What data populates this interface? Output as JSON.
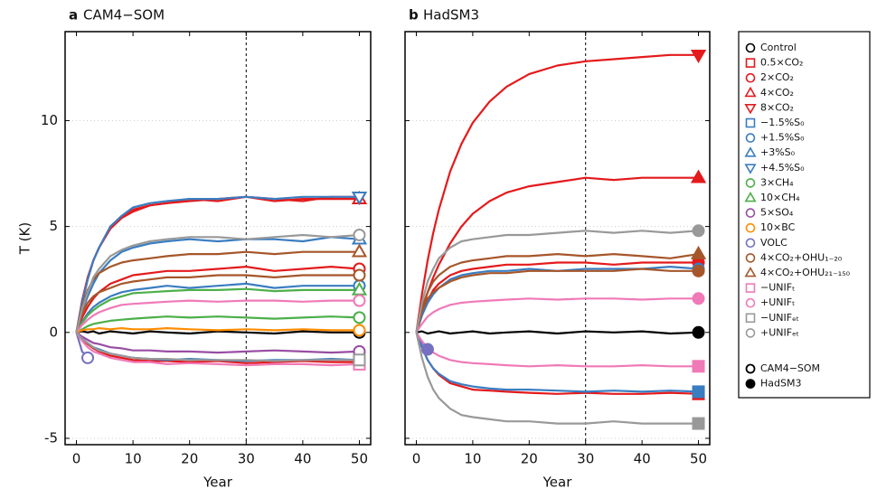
{
  "chart_data": [
    {
      "type": "line",
      "panel_label": "a",
      "title": "CAM4−SOM",
      "x_label": "Year",
      "y_label": "T (K)",
      "x": [
        0,
        1,
        2,
        3,
        4,
        6,
        8,
        10,
        13,
        16,
        20,
        25,
        30,
        35,
        40,
        45,
        50
      ],
      "xlim": [
        -2,
        52
      ],
      "xticks": [
        0,
        10,
        20,
        30,
        40,
        50
      ],
      "ylim": [
        -5.3,
        14.2
      ],
      "yticks": [
        -5,
        0,
        5,
        10
      ],
      "ytick_labels": true,
      "grid": true,
      "vline": 30,
      "marker_fill": false,
      "series": [
        {
          "name": "Control",
          "color": "#000000",
          "marker": "circle",
          "values": [
            0,
            0.05,
            0,
            0.05,
            -0.05,
            0.05,
            0,
            -0.05,
            0.05,
            0,
            -0.05,
            0.05,
            0,
            -0.05,
            0.05,
            0,
            0
          ]
        },
        {
          "name": "0.5×CO₂",
          "color": "#e41a1c",
          "marker": "square",
          "values": [
            0,
            -0.3,
            -0.55,
            -0.75,
            -0.9,
            -1.1,
            -1.2,
            -1.3,
            -1.35,
            -1.35,
            -1.4,
            -1.35,
            -1.45,
            -1.4,
            -1.35,
            -1.4,
            -1.4
          ]
        },
        {
          "name": "2×CO₂",
          "color": "#e41a1c",
          "marker": "circle",
          "values": [
            0,
            0.7,
            1.2,
            1.6,
            1.9,
            2.3,
            2.5,
            2.7,
            2.8,
            2.9,
            2.9,
            3.0,
            3.1,
            2.9,
            3.0,
            3.1,
            3.0
          ]
        },
        {
          "name": "4×CO₂",
          "color": "#e41a1c",
          "marker": "triangle-up",
          "values": [
            0,
            1.5,
            2.6,
            3.4,
            4.0,
            4.9,
            5.4,
            5.7,
            6.0,
            6.1,
            6.2,
            6.3,
            6.4,
            6.2,
            6.3,
            6.3,
            6.3
          ]
        },
        {
          "name": "8×CO₂",
          "color": "#e41a1c",
          "marker": "triangle-down",
          "values": [
            0,
            1.4,
            2.5,
            3.4,
            4.0,
            5.0,
            5.5,
            5.8,
            6.0,
            6.1,
            6.3,
            6.2,
            6.4,
            6.3,
            6.2,
            6.4,
            6.4
          ]
        },
        {
          "name": "−1.5%S₀",
          "color": "#3a7dc1",
          "marker": "square",
          "values": [
            0,
            -0.3,
            -0.5,
            -0.7,
            -0.8,
            -1.0,
            -1.1,
            -1.2,
            -1.25,
            -1.3,
            -1.25,
            -1.3,
            -1.35,
            -1.3,
            -1.3,
            -1.25,
            -1.3
          ]
        },
        {
          "name": "+1.5%S₀",
          "color": "#3a7dc1",
          "marker": "circle",
          "values": [
            0,
            0.5,
            0.9,
            1.2,
            1.4,
            1.7,
            1.9,
            2.0,
            2.1,
            2.2,
            2.1,
            2.2,
            2.3,
            2.1,
            2.2,
            2.2,
            2.2
          ]
        },
        {
          "name": "+3%S₀",
          "color": "#3a7dc1",
          "marker": "triangle-up",
          "values": [
            0,
            1.0,
            1.7,
            2.3,
            2.8,
            3.4,
            3.8,
            4.0,
            4.2,
            4.3,
            4.4,
            4.3,
            4.4,
            4.4,
            4.3,
            4.5,
            4.4
          ]
        },
        {
          "name": "+4.5%S₀",
          "color": "#3a7dc1",
          "marker": "triangle-down",
          "values": [
            0,
            1.4,
            2.5,
            3.4,
            4.0,
            5.0,
            5.5,
            5.9,
            6.1,
            6.2,
            6.3,
            6.3,
            6.4,
            6.3,
            6.4,
            6.4,
            6.4
          ]
        },
        {
          "name": "3×CH₄",
          "color": "#4daf4a",
          "marker": "circle",
          "values": [
            0,
            0.15,
            0.3,
            0.4,
            0.45,
            0.55,
            0.6,
            0.65,
            0.7,
            0.75,
            0.7,
            0.75,
            0.7,
            0.65,
            0.7,
            0.75,
            0.7
          ]
        },
        {
          "name": "10×CH₄",
          "color": "#4daf4a",
          "marker": "triangle-up",
          "values": [
            0,
            0.45,
            0.8,
            1.05,
            1.25,
            1.55,
            1.7,
            1.85,
            1.9,
            1.95,
            2.0,
            2.0,
            2.05,
            1.95,
            2.0,
            2.0,
            2.0
          ]
        },
        {
          "name": "5×SO₄",
          "color": "#984ea3",
          "marker": "circle",
          "values": [
            0,
            -0.2,
            -0.35,
            -0.5,
            -0.55,
            -0.7,
            -0.75,
            -0.85,
            -0.85,
            -0.9,
            -0.9,
            -0.95,
            -0.9,
            -0.85,
            -0.9,
            -0.95,
            -0.9
          ]
        },
        {
          "name": "10×BC",
          "color": "#ff8c00",
          "marker": "circle",
          "values": [
            0,
            0.1,
            0.15,
            0.15,
            0.2,
            0.15,
            0.2,
            0.15,
            0.15,
            0.2,
            0.15,
            0.1,
            0.15,
            0.1,
            0.15,
            0.1,
            0.1
          ]
        },
        {
          "name": "VOLC",
          "color": "#7570c0",
          "marker": "circle",
          "values": [
            0,
            -0.9,
            -1.2,
            null,
            null,
            null,
            null,
            null,
            null,
            null,
            null,
            null,
            null,
            null,
            null,
            null,
            null
          ]
        },
        {
          "name": "4×CO₂+OHU₁₋₂₀",
          "color": "#a6562a",
          "marker": "circle",
          "values": [
            0,
            0.9,
            1.4,
            1.7,
            1.9,
            2.1,
            2.3,
            2.4,
            2.5,
            2.6,
            2.6,
            2.7,
            2.7,
            2.6,
            2.7,
            2.7,
            2.7
          ]
        },
        {
          "name": "4×CO₂+OHU₂₁₋₁₅₀",
          "color": "#a6562a",
          "marker": "triangle-up",
          "values": [
            0,
            1.2,
            2.0,
            2.5,
            2.8,
            3.1,
            3.3,
            3.4,
            3.5,
            3.6,
            3.7,
            3.7,
            3.8,
            3.7,
            3.8,
            3.8,
            3.8
          ]
        },
        {
          "name": "−UNIFₜ",
          "color": "#f07ab8",
          "marker": "square",
          "values": [
            0,
            -0.4,
            -0.7,
            -0.9,
            -1.0,
            -1.2,
            -1.3,
            -1.4,
            -1.4,
            -1.5,
            -1.45,
            -1.5,
            -1.55,
            -1.5,
            -1.5,
            -1.55,
            -1.5
          ]
        },
        {
          "name": "+UNIFₜ",
          "color": "#f07ab8",
          "marker": "circle",
          "values": [
            0,
            0.35,
            0.6,
            0.8,
            0.95,
            1.15,
            1.3,
            1.35,
            1.4,
            1.45,
            1.5,
            1.45,
            1.5,
            1.5,
            1.45,
            1.5,
            1.5
          ]
        },
        {
          "name": "−UNIFₑₜ",
          "color": "#999999",
          "marker": "square",
          "values": [
            0,
            -0.3,
            -0.5,
            -0.7,
            -0.85,
            -1.0,
            -1.1,
            -1.2,
            -1.25,
            -1.25,
            -1.3,
            -1.3,
            -1.3,
            -1.35,
            -1.3,
            -1.3,
            -1.3
          ]
        },
        {
          "name": "+UNIFₑₜ",
          "color": "#999999",
          "marker": "circle",
          "values": [
            0,
            1.1,
            1.9,
            2.6,
            3.0,
            3.6,
            3.9,
            4.1,
            4.3,
            4.4,
            4.5,
            4.5,
            4.4,
            4.5,
            4.6,
            4.5,
            4.6
          ]
        }
      ]
    },
    {
      "type": "line",
      "panel_label": "b",
      "title": "HadSM3",
      "x_label": "Year",
      "x": [
        0,
        1,
        2,
        3,
        4,
        6,
        8,
        10,
        13,
        16,
        20,
        25,
        30,
        35,
        40,
        45,
        50
      ],
      "xlim": [
        -2,
        52
      ],
      "xticks": [
        0,
        10,
        20,
        30,
        40,
        50
      ],
      "ylim": [
        -5.3,
        14.2
      ],
      "yticks": [
        -5,
        0,
        5,
        10
      ],
      "ytick_labels": false,
      "grid": true,
      "vline": 30,
      "marker_fill": true,
      "series": [
        {
          "name": "Control",
          "color": "#000000",
          "marker": "circle",
          "values": [
            0,
            0.05,
            -0.05,
            0,
            0.05,
            -0.05,
            0,
            0.05,
            -0.05,
            0,
            0.05,
            -0.05,
            0.05,
            0,
            0.05,
            -0.05,
            0
          ]
        },
        {
          "name": "0.5×CO₂",
          "color": "#e41a1c",
          "marker": "square",
          "values": [
            0,
            -0.7,
            -1.3,
            -1.7,
            -2.0,
            -2.4,
            -2.55,
            -2.7,
            -2.75,
            -2.8,
            -2.85,
            -2.9,
            -2.85,
            -2.9,
            -2.9,
            -2.85,
            -2.9
          ]
        },
        {
          "name": "2×CO₂",
          "color": "#e41a1c",
          "marker": "circle",
          "values": [
            0,
            0.8,
            1.5,
            2.0,
            2.3,
            2.7,
            2.9,
            3.0,
            3.1,
            3.2,
            3.2,
            3.3,
            3.3,
            3.2,
            3.3,
            3.3,
            3.3
          ]
        },
        {
          "name": "4×CO₂",
          "color": "#e41a1c",
          "marker": "triangle-up",
          "values": [
            0,
            1.0,
            1.9,
            2.6,
            3.2,
            4.2,
            5.0,
            5.6,
            6.2,
            6.6,
            6.9,
            7.1,
            7.3,
            7.2,
            7.3,
            7.3,
            7.3
          ]
        },
        {
          "name": "8×CO₂",
          "color": "#e41a1c",
          "marker": "triangle-down",
          "values": [
            0,
            1.8,
            3.4,
            4.7,
            5.8,
            7.6,
            8.9,
            9.9,
            10.9,
            11.6,
            12.2,
            12.6,
            12.8,
            12.9,
            13.0,
            13.1,
            13.1
          ]
        },
        {
          "name": "−1.5%S₀",
          "color": "#3a7dc1",
          "marker": "square",
          "values": [
            0,
            -0.7,
            -1.3,
            -1.7,
            -1.95,
            -2.3,
            -2.45,
            -2.55,
            -2.65,
            -2.7,
            -2.7,
            -2.75,
            -2.8,
            -2.75,
            -2.8,
            -2.75,
            -2.8
          ]
        },
        {
          "name": "+1.5%S₀",
          "color": "#3a7dc1",
          "marker": "circle",
          "values": [
            0,
            0.8,
            1.4,
            1.8,
            2.1,
            2.5,
            2.7,
            2.8,
            2.9,
            2.9,
            3.0,
            2.9,
            3.0,
            3.0,
            3.0,
            3.1,
            3.0
          ]
        },
        {
          "name": "VOLC",
          "color": "#7570c0",
          "marker": "circle",
          "values": [
            0,
            -0.5,
            -0.8,
            null,
            null,
            null,
            null,
            null,
            null,
            null,
            null,
            null,
            null,
            null,
            null,
            null,
            null
          ]
        },
        {
          "name": "4×CO₂+OHU₁₋₂₀",
          "color": "#a6562a",
          "marker": "circle",
          "values": [
            0,
            1.0,
            1.6,
            1.9,
            2.1,
            2.4,
            2.6,
            2.7,
            2.8,
            2.8,
            2.9,
            2.9,
            2.9,
            2.9,
            3.0,
            2.9,
            2.9
          ]
        },
        {
          "name": "4×CO₂+OHU₂₁₋₁₅₀",
          "color": "#a6562a",
          "marker": "triangle-up",
          "values": [
            0,
            1.2,
            1.9,
            2.4,
            2.7,
            3.1,
            3.3,
            3.4,
            3.5,
            3.6,
            3.6,
            3.7,
            3.6,
            3.7,
            3.6,
            3.5,
            3.7
          ]
        },
        {
          "name": "−UNIFₜ",
          "color": "#f07ab8",
          "marker": "square",
          "values": [
            0,
            -0.4,
            -0.75,
            -0.95,
            -1.1,
            -1.3,
            -1.4,
            -1.45,
            -1.5,
            -1.55,
            -1.6,
            -1.55,
            -1.6,
            -1.6,
            -1.55,
            -1.6,
            -1.6
          ]
        },
        {
          "name": "+UNIFₜ",
          "color": "#f07ab8",
          "marker": "circle",
          "values": [
            0,
            0.4,
            0.75,
            0.95,
            1.1,
            1.3,
            1.4,
            1.45,
            1.5,
            1.55,
            1.6,
            1.55,
            1.6,
            1.6,
            1.55,
            1.6,
            1.6
          ]
        },
        {
          "name": "−UNIFₑₜ",
          "color": "#999999",
          "marker": "square",
          "values": [
            0,
            -1.2,
            -2.1,
            -2.7,
            -3.1,
            -3.6,
            -3.9,
            -4.0,
            -4.1,
            -4.2,
            -4.2,
            -4.3,
            -4.3,
            -4.2,
            -4.3,
            -4.3,
            -4.3
          ]
        },
        {
          "name": "+UNIFₑₜ",
          "color": "#999999",
          "marker": "circle",
          "values": [
            0,
            1.4,
            2.4,
            3.0,
            3.5,
            4.0,
            4.3,
            4.4,
            4.5,
            4.6,
            4.6,
            4.7,
            4.8,
            4.7,
            4.8,
            4.7,
            4.8
          ]
        }
      ]
    }
  ]
}
